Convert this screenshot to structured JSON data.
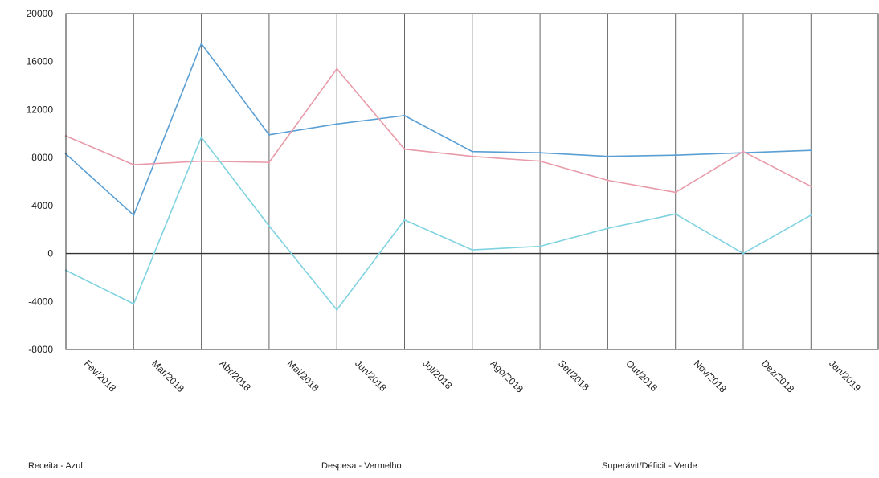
{
  "chart_data": {
    "type": "line",
    "categories": [
      "Fev/2018",
      "Mar/2018",
      "Abr/2018",
      "Mai/2018",
      "Jun/2018",
      "Jul/2018",
      "Ago/2018",
      "Set/2018",
      "Out/2018",
      "Nov/2018",
      "Dez/2018",
      "Jan/2019"
    ],
    "series": [
      {
        "name": "Receita",
        "color": "#5a9fd4",
        "values": [
          8300,
          3200,
          17500,
          9900,
          10800,
          11500,
          8500,
          8400,
          8100,
          8200,
          8400,
          8600
        ]
      },
      {
        "name": "Despesa",
        "color": "#e89aa8",
        "values": [
          9800,
          7400,
          7700,
          7600,
          15400,
          8700,
          8100,
          7700,
          6100,
          5100,
          8500,
          5600
        ]
      },
      {
        "name": "Superávit/Déficit",
        "color": "#7fd3e0",
        "values": [
          -1400,
          -4200,
          9700,
          2300,
          -4700,
          2800,
          300,
          600,
          2100,
          3300,
          0,
          3200
        ]
      }
    ],
    "ylim": [
      -8000,
      20000
    ],
    "yticks": [
      "20000",
      "16000",
      "12000",
      "8000",
      "4000",
      "0",
      "-4000",
      "-8000"
    ],
    "grid": "vertical"
  },
  "legend": {
    "receita": "Receita - Azul",
    "despesa": "Despesa - Vermelho",
    "superavit": "Superávit/Déficit - Verde"
  }
}
